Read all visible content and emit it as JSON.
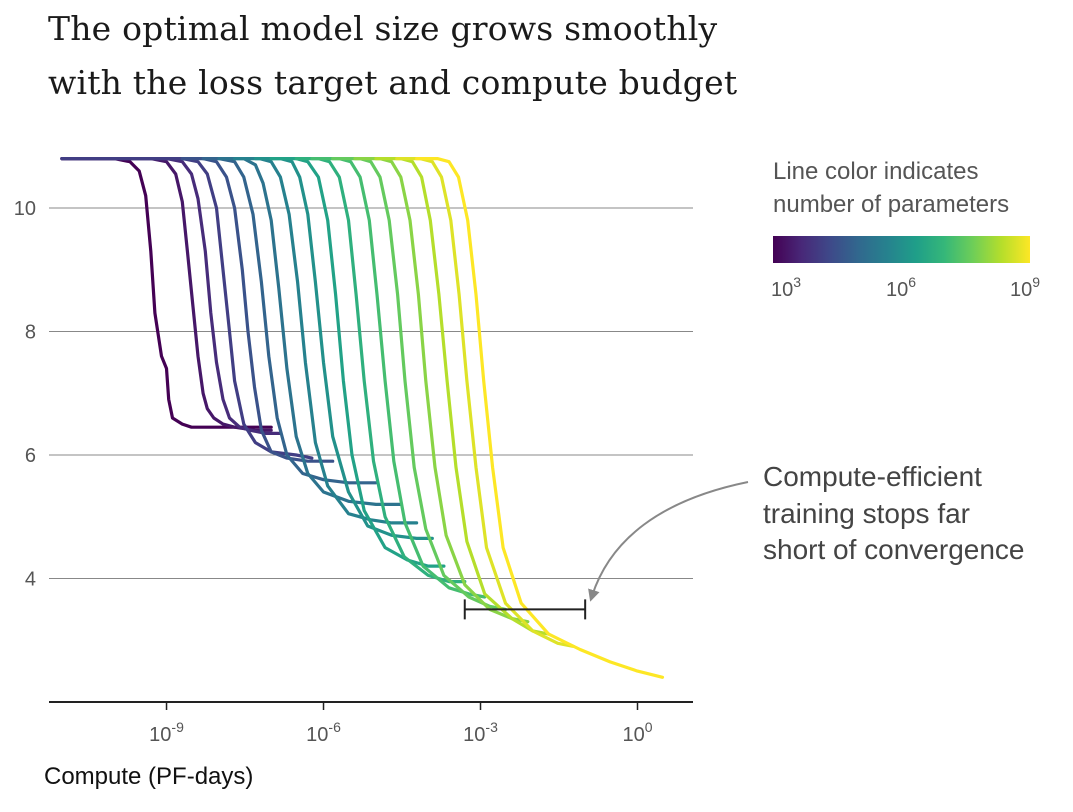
{
  "title_lines": [
    "The optimal model size grows smoothly",
    "with the loss target and compute budget"
  ],
  "colors": {
    "viridis": [
      "#440154",
      "#482878",
      "#3e4989",
      "#31688e",
      "#26828e",
      "#1f9e89",
      "#35b779",
      "#6ece58",
      "#b5de2b",
      "#fde725"
    ],
    "grid": "#888888",
    "axis": "#222222",
    "annotation_arrow": "#888888"
  },
  "chart_data": {
    "type": "line",
    "title": "The optimal model size grows smoothly with the loss target and compute budget",
    "xlabel": "Compute (PF-days)",
    "ylabel": "",
    "x_scale": "log10",
    "xlim": [
      1e-11,
      10
    ],
    "ylim": [
      2.0,
      11.0
    ],
    "x_ticks": [
      {
        "value": 1e-09,
        "base": "10",
        "exp": "-9"
      },
      {
        "value": 1e-06,
        "base": "10",
        "exp": "-6"
      },
      {
        "value": 0.001,
        "base": "10",
        "exp": "-3"
      },
      {
        "value": 1,
        "base": "10",
        "exp": "0"
      }
    ],
    "y_ticks": [
      4,
      6,
      8,
      10
    ],
    "grid": "horizontal",
    "legend": {
      "title_lines": [
        "Line color indicates",
        "number of parameters"
      ],
      "colormap": "viridis",
      "placement": "top-right",
      "tick_labels": [
        {
          "base": "10",
          "exp": "3"
        },
        {
          "base": "10",
          "exp": "6"
        },
        {
          "base": "10",
          "exp": "9"
        }
      ]
    },
    "annotation": {
      "lines": [
        "Compute-efficient",
        "training stops far",
        "short of convergence"
      ],
      "bracket_x_range": [
        0.0005,
        0.1
      ],
      "bracket_y": 3.5
    },
    "series": [
      {
        "params": 1000.0,
        "x": [
          1e-11,
          1e-10,
          2e-10,
          3e-10,
          4e-10,
          5e-10,
          6e-10,
          8e-10,
          1e-09,
          1.1e-09,
          1.3e-09,
          2e-09,
          3e-09,
          1e-08,
          1e-07
        ],
        "y": [
          10.8,
          10.8,
          10.75,
          10.6,
          10.2,
          9.3,
          8.3,
          7.6,
          7.4,
          6.9,
          6.6,
          6.5,
          6.45,
          6.45,
          6.45
        ]
      },
      {
        "params": 2500.0,
        "x": [
          1e-11,
          5e-10,
          1e-09,
          1.5e-09,
          2e-09,
          2.5e-09,
          3.2e-09,
          4e-09,
          5e-09,
          6e-09,
          8e-09,
          1.2e-08,
          2e-08,
          5e-08,
          1e-07
        ],
        "y": [
          10.8,
          10.8,
          10.75,
          10.55,
          10.1,
          9.3,
          8.4,
          7.6,
          7.0,
          6.75,
          6.6,
          6.5,
          6.45,
          6.4,
          6.4
        ]
      },
      {
        "params": 6000.0,
        "x": [
          1e-11,
          1e-09,
          2e-09,
          3e-09,
          4e-09,
          5.5e-09,
          7e-09,
          9e-09,
          1.2e-08,
          1.6e-08,
          2.5e-08,
          4e-08,
          8e-08,
          1.5e-07
        ],
        "y": [
          10.8,
          10.8,
          10.75,
          10.55,
          10.15,
          9.3,
          8.3,
          7.5,
          6.9,
          6.6,
          6.45,
          6.4,
          6.35,
          6.35
        ]
      },
      {
        "params": 15000.0,
        "x": [
          1e-11,
          2e-09,
          4e-09,
          6e-09,
          9e-09,
          1.2e-08,
          1.6e-08,
          2e-08,
          3e-08,
          5e-08,
          1e-07,
          3e-07,
          6e-07
        ],
        "y": [
          10.8,
          10.8,
          10.75,
          10.55,
          10.0,
          9.0,
          8.0,
          7.2,
          6.5,
          6.2,
          6.05,
          6.0,
          5.95
        ]
      },
      {
        "params": 40000.0,
        "x": [
          2e-09,
          5e-09,
          9e-09,
          1.4e-08,
          2e-08,
          2.8e-08,
          3.6e-08,
          4.8e-08,
          6.5e-08,
          1e-07,
          2e-07,
          5e-07,
          1.5e-06
        ],
        "y": [
          10.8,
          10.8,
          10.75,
          10.5,
          10.0,
          9.0,
          8.0,
          7.1,
          6.4,
          6.05,
          5.95,
          5.9,
          5.9
        ]
      },
      {
        "params": 100000.0,
        "x": [
          5e-09,
          1e-08,
          2e-08,
          3e-08,
          4.5e-08,
          6.5e-08,
          9e-08,
          1.3e-07,
          2e-07,
          4e-07,
          1e-06,
          3e-06,
          1e-05
        ],
        "y": [
          10.8,
          10.8,
          10.75,
          10.5,
          9.9,
          8.8,
          7.6,
          6.6,
          6.0,
          5.7,
          5.6,
          5.55,
          5.55
        ]
      },
      {
        "params": 250000.0,
        "x": [
          1e-08,
          3e-08,
          5e-08,
          7e-08,
          1e-07,
          1.4e-07,
          2e-07,
          3e-07,
          5e-07,
          1e-06,
          3e-06,
          1e-05,
          3e-05
        ],
        "y": [
          10.8,
          10.8,
          10.7,
          10.4,
          9.8,
          8.7,
          7.4,
          6.3,
          5.7,
          5.4,
          5.25,
          5.2,
          5.2
        ]
      },
      {
        "params": 600000.0,
        "x": [
          2e-08,
          6e-08,
          1e-07,
          1.5e-07,
          2.2e-07,
          3.2e-07,
          4.5e-07,
          7e-07,
          1.2e-06,
          3e-06,
          8e-06,
          2e-05,
          6e-05
        ],
        "y": [
          10.8,
          10.8,
          10.75,
          10.5,
          9.9,
          8.8,
          7.5,
          6.2,
          5.5,
          5.05,
          4.95,
          4.9,
          4.9
        ]
      },
      {
        "params": 1500000.0,
        "x": [
          5e-08,
          1.5e-07,
          2.5e-07,
          3.5e-07,
          5e-07,
          7e-07,
          1e-06,
          1.5e-06,
          3e-06,
          7e-06,
          2e-05,
          6e-05,
          0.00012
        ],
        "y": [
          10.8,
          10.8,
          10.75,
          10.5,
          9.9,
          8.8,
          7.5,
          6.3,
          5.4,
          4.85,
          4.7,
          4.65,
          4.65
        ]
      },
      {
        "params": 4000000.0,
        "x": [
          1e-07,
          3e-07,
          5e-07,
          8e-07,
          1.2e-06,
          1.7e-06,
          2.4e-06,
          3.5e-06,
          6e-06,
          1.5e-05,
          4e-05,
          0.0001,
          0.0002
        ],
        "y": [
          10.8,
          10.8,
          10.75,
          10.5,
          9.8,
          8.6,
          7.2,
          6.0,
          5.1,
          4.5,
          4.3,
          4.2,
          4.2
        ]
      },
      {
        "params": 10000000.0,
        "x": [
          3e-07,
          8e-07,
          1.3e-06,
          2e-06,
          3e-06,
          4.2e-06,
          6e-06,
          9e-06,
          1.5e-05,
          3.5e-05,
          0.0001,
          0.00025,
          0.0005
        ],
        "y": [
          10.8,
          10.8,
          10.75,
          10.5,
          9.8,
          8.6,
          7.2,
          5.9,
          5.0,
          4.35,
          4.05,
          3.95,
          3.95
        ]
      },
      {
        "params": 25000000.0,
        "x": [
          6e-07,
          2e-06,
          3.3e-06,
          5e-06,
          7.5e-06,
          1.05e-05,
          1.5e-05,
          2.2e-05,
          3.6e-05,
          8e-05,
          0.00025,
          0.0006,
          0.0012
        ],
        "y": [
          10.8,
          10.8,
          10.75,
          10.5,
          9.8,
          8.6,
          7.2,
          5.9,
          4.9,
          4.2,
          3.85,
          3.75,
          3.7
        ]
      },
      {
        "params": 60000000.0,
        "x": [
          1.5e-06,
          5e-06,
          8e-06,
          1.2e-05,
          1.8e-05,
          2.6e-05,
          3.6e-05,
          5.4e-05,
          9e-05,
          0.0002,
          0.0006,
          0.0015,
          0.003
        ],
        "y": [
          10.8,
          10.8,
          10.75,
          10.5,
          9.8,
          8.6,
          7.2,
          5.8,
          4.8,
          4.05,
          3.7,
          3.55,
          3.5
        ]
      },
      {
        "params": 150000000.0,
        "x": [
          4e-06,
          1.2e-05,
          2e-05,
          3e-05,
          4.5e-05,
          6.5e-05,
          9e-05,
          0.000135,
          0.00022,
          0.0005,
          0.0015,
          0.004,
          0.008
        ],
        "y": [
          10.8,
          10.8,
          10.75,
          10.5,
          9.8,
          8.6,
          7.2,
          5.8,
          4.7,
          3.9,
          3.5,
          3.35,
          3.3
        ]
      },
      {
        "params": 400000000.0,
        "x": [
          1e-05,
          3e-05,
          5e-05,
          7.5e-05,
          0.00011,
          0.00016,
          0.00023,
          0.00034,
          0.00055,
          0.0012,
          0.004,
          0.01,
          0.02
        ],
        "y": [
          10.8,
          10.8,
          10.75,
          10.5,
          9.8,
          8.6,
          7.2,
          5.8,
          4.6,
          3.75,
          3.35,
          3.15,
          3.1
        ]
      },
      {
        "params": 1000000000.0,
        "x": [
          2.5e-05,
          7e-05,
          0.00012,
          0.00018,
          0.00027,
          0.00039,
          0.00055,
          0.00082,
          0.0013,
          0.003,
          0.01,
          0.03,
          0.06
        ],
        "y": [
          10.8,
          10.8,
          10.75,
          10.5,
          9.8,
          8.6,
          7.2,
          5.8,
          4.5,
          3.6,
          3.15,
          2.95,
          2.9
        ]
      },
      {
        "params": 2000000000.0,
        "x": [
          6e-05,
          0.00015,
          0.00025,
          0.00038,
          0.00057,
          0.00082,
          0.00115,
          0.0017,
          0.0027,
          0.006,
          0.02,
          0.08,
          0.3,
          1.0,
          3.0
        ],
        "y": [
          10.8,
          10.8,
          10.75,
          10.5,
          9.8,
          8.6,
          7.2,
          5.8,
          4.5,
          3.6,
          3.1,
          2.85,
          2.65,
          2.5,
          2.4
        ]
      }
    ]
  }
}
